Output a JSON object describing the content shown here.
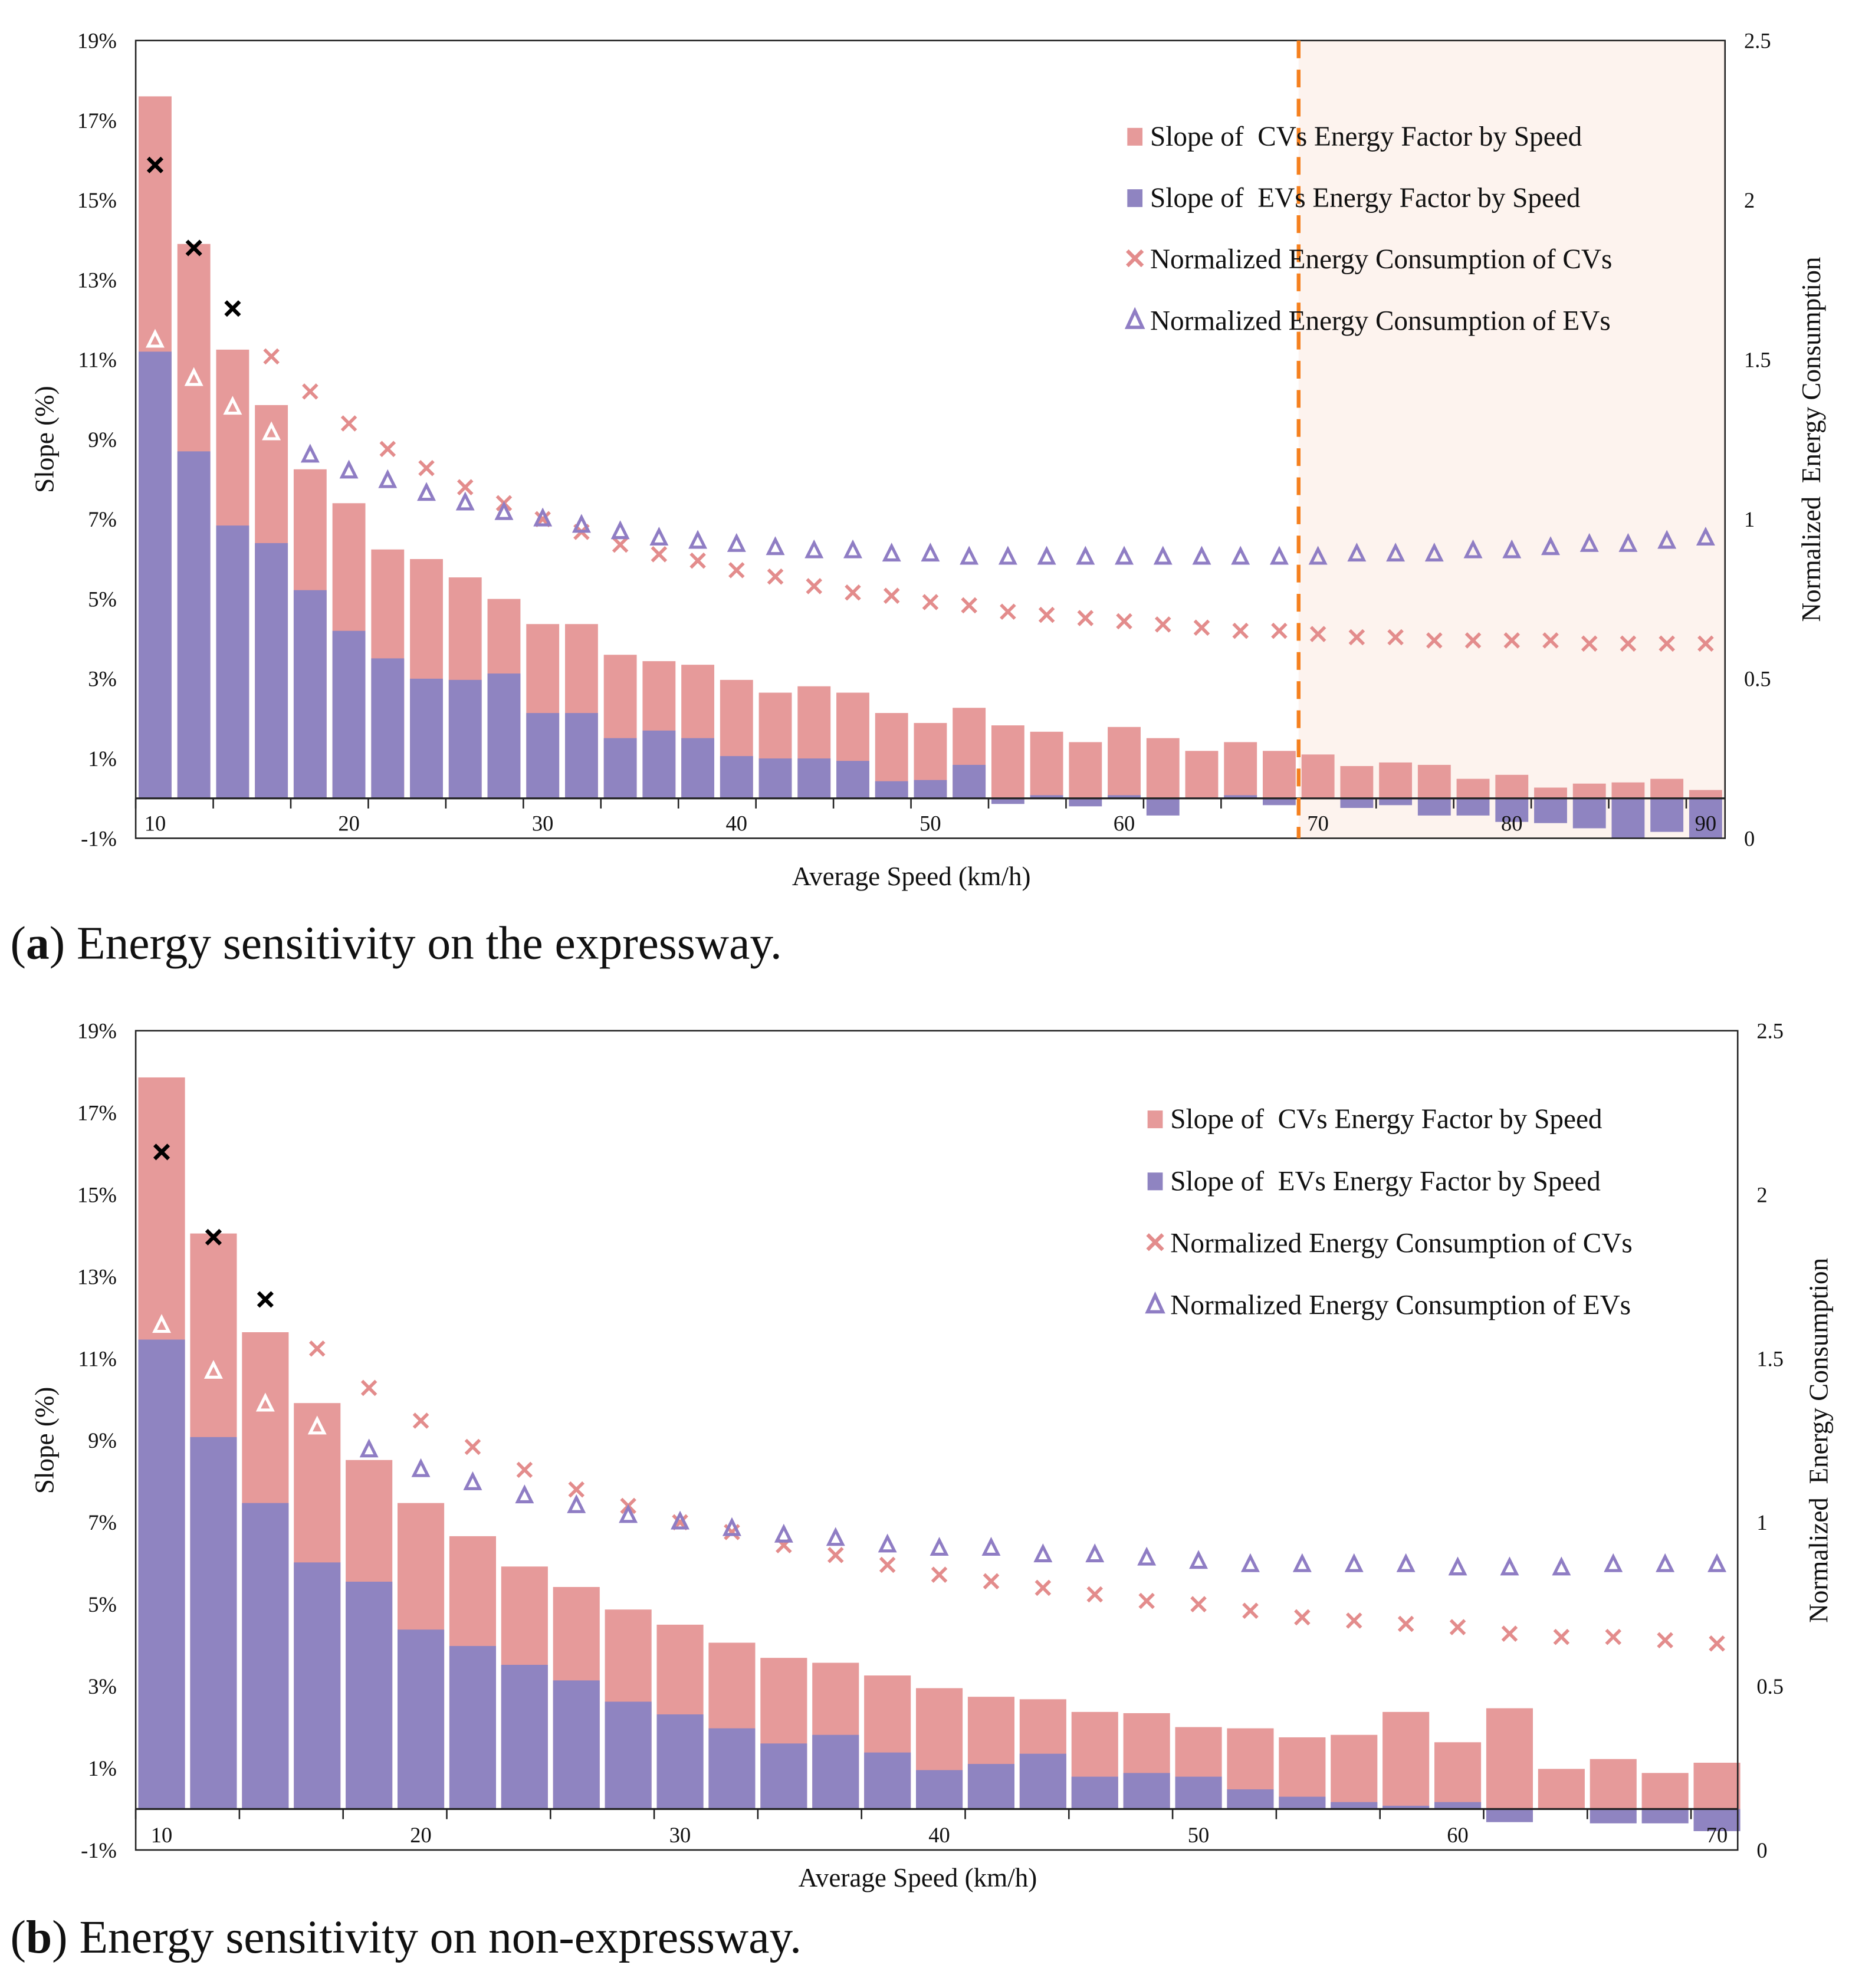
{
  "colors": {
    "cv_bar": "#e69a9a",
    "ev_bar": "#8f84c1",
    "cv_marker": "#e38c8c",
    "ev_marker": "#8f7dc4",
    "highlight_marker": "#000000",
    "threshold_line": "#f5801e",
    "shade": "#fdf3ee"
  },
  "chart_data": [
    {
      "type": "bar",
      "caption_label": "a",
      "caption_text": " Energy sensitivity on the expressway.",
      "xlabel": "Average Speed (km/h)",
      "ylabel": "Slope (%)",
      "y2label": "Normalized  Energy Consumption",
      "xlim": [
        9,
        91
      ],
      "ylim": [
        -1,
        19
      ],
      "y2lim": [
        0,
        2.5
      ],
      "xticks": [
        "10",
        "20",
        "30",
        "40",
        "50",
        "60",
        "70",
        "80",
        "90"
      ],
      "yticks": [
        "-1%",
        "1%",
        "3%",
        "5%",
        "7%",
        "9%",
        "11%",
        "13%",
        "15%",
        "17%",
        "19%"
      ],
      "y2ticks": [
        "0",
        "0.5",
        "1",
        "1.5",
        "2",
        "2.5"
      ],
      "threshold_speed": 69,
      "shaded_range": [
        69,
        91
      ],
      "legend": [
        "Slope of  CVs Energy Factor by Speed",
        "Slope of  EVs Energy Factor by Speed",
        "Normalized Energy Consumption of CVs",
        "Normalized Energy Consumption of EVs"
      ],
      "x": [
        10,
        12,
        14,
        16,
        18,
        20,
        22,
        24,
        26,
        28,
        30,
        32,
        34,
        36,
        38,
        40,
        42,
        44,
        46,
        48,
        50,
        52,
        54,
        56,
        58,
        60,
        62,
        64,
        66,
        68,
        70,
        72,
        74,
        76,
        78,
        80,
        82,
        84,
        86,
        88,
        90
      ],
      "series": [
        {
          "name": "Slope of  CVs Energy Factor by Speed",
          "axis": "left",
          "values": [
            17.6,
            13.9,
            11.25,
            9.86,
            8.25,
            7.4,
            6.24,
            6.0,
            5.54,
            5.0,
            4.37,
            4.37,
            3.6,
            3.44,
            3.35,
            2.97,
            2.65,
            2.81,
            2.65,
            2.14,
            1.89,
            2.27,
            1.83,
            1.67,
            1.41,
            1.79,
            1.51,
            1.19,
            1.41,
            1.19,
            1.1,
            0.81,
            0.9,
            0.84,
            0.49,
            0.59,
            0.27,
            0.37,
            0.4,
            0.49,
            0.21
          ]
        },
        {
          "name": "Slope of  EVs Energy Factor by Speed",
          "axis": "left",
          "values": [
            11.2,
            8.7,
            6.84,
            6.4,
            5.22,
            4.2,
            3.51,
            3.0,
            2.97,
            3.13,
            2.14,
            2.14,
            1.51,
            1.7,
            1.51,
            1.06,
            1.0,
            1.0,
            0.94,
            0.43,
            0.46,
            0.84,
            -0.14,
            0.08,
            -0.2,
            0.08,
            -0.43,
            0.02,
            0.08,
            -0.17,
            0.0,
            -0.24,
            -0.17,
            -0.43,
            -0.43,
            -0.59,
            -0.62,
            -0.75,
            -1.0,
            -0.84,
            -1.0
          ]
        },
        {
          "name": "Normalized Energy Consumption of CVs",
          "axis": "right",
          "values": [
            2.11,
            1.85,
            1.66,
            1.51,
            1.4,
            1.3,
            1.22,
            1.16,
            1.1,
            1.05,
            1.0,
            0.96,
            0.92,
            0.89,
            0.87,
            0.84,
            0.82,
            0.79,
            0.77,
            0.76,
            0.74,
            0.73,
            0.71,
            0.7,
            0.69,
            0.68,
            0.67,
            0.66,
            0.65,
            0.65,
            0.64,
            0.63,
            0.63,
            0.62,
            0.62,
            0.62,
            0.62,
            0.61,
            0.61,
            0.61,
            0.61
          ]
        },
        {
          "name": "Normalized Energy Consumption of EVs",
          "axis": "right",
          "values": [
            1.56,
            1.44,
            1.35,
            1.27,
            1.2,
            1.15,
            1.12,
            1.08,
            1.05,
            1.02,
            1.0,
            0.98,
            0.96,
            0.94,
            0.93,
            0.92,
            0.91,
            0.9,
            0.9,
            0.89,
            0.89,
            0.88,
            0.88,
            0.88,
            0.88,
            0.88,
            0.88,
            0.88,
            0.88,
            0.88,
            0.88,
            0.89,
            0.89,
            0.89,
            0.9,
            0.9,
            0.91,
            0.92,
            0.92,
            0.93,
            0.94
          ]
        }
      ]
    },
    {
      "type": "bar",
      "caption_label": "b",
      "caption_text": " Energy sensitivity on non-expressway.",
      "xlabel": "Average Speed (km/h)",
      "ylabel": "Slope (%)",
      "y2label": "Normalized  Energy Consumption",
      "xlim": [
        9,
        70.8
      ],
      "ylim": [
        -1,
        19
      ],
      "y2lim": [
        0,
        2.5
      ],
      "xticks": [
        "10",
        "20",
        "30",
        "40",
        "50",
        "60",
        "70"
      ],
      "yticks": [
        "-1%",
        "1%",
        "3%",
        "5%",
        "7%",
        "9%",
        "11%",
        "13%",
        "15%",
        "17%",
        "19%"
      ],
      "y2ticks": [
        "0",
        "0.5",
        "1",
        "1.5",
        "2",
        "2.5"
      ],
      "legend": [
        "Slope of  CVs Energy Factor by Speed",
        "Slope of  EVs Energy Factor by Speed",
        "Normalized Energy Consumption of CVs",
        "Normalized Energy Consumption of EVs"
      ],
      "x": [
        10,
        12,
        14,
        16,
        18,
        20,
        22,
        24,
        26,
        28,
        30,
        32,
        34,
        36,
        38,
        40,
        42,
        44,
        46,
        48,
        50,
        52,
        54,
        56,
        58,
        60,
        62,
        64,
        66,
        68,
        70
      ],
      "series": [
        {
          "name": "Slope of  CVs Energy Factor by Speed",
          "axis": "left",
          "values": [
            17.86,
            14.05,
            11.64,
            9.91,
            8.52,
            7.47,
            6.66,
            5.92,
            5.42,
            4.87,
            4.5,
            4.06,
            3.69,
            3.57,
            3.26,
            2.95,
            2.74,
            2.68,
            2.37,
            2.34,
            2.0,
            1.97,
            1.75,
            1.81,
            2.37,
            1.63,
            2.46,
            0.98,
            1.22,
            0.88,
            1.13
          ]
        },
        {
          "name": "Slope of  EVs Energy Factor by Speed",
          "axis": "left",
          "values": [
            11.46,
            9.08,
            7.47,
            6.02,
            5.55,
            4.38,
            3.98,
            3.52,
            3.14,
            2.62,
            2.31,
            1.97,
            1.6,
            1.81,
            1.38,
            0.95,
            1.1,
            1.35,
            0.79,
            0.88,
            0.79,
            0.48,
            0.3,
            0.17,
            0.08,
            0.17,
            -0.32,
            0.02,
            -0.35,
            -0.35,
            -0.54
          ]
        },
        {
          "name": "Normalized Energy Consumption of CVs",
          "axis": "right",
          "values": [
            2.13,
            1.87,
            1.68,
            1.53,
            1.41,
            1.31,
            1.23,
            1.16,
            1.1,
            1.05,
            1.0,
            0.97,
            0.93,
            0.9,
            0.87,
            0.84,
            0.82,
            0.8,
            0.78,
            0.76,
            0.75,
            0.73,
            0.71,
            0.7,
            0.69,
            0.68,
            0.66,
            0.65,
            0.65,
            0.64,
            0.63
          ]
        },
        {
          "name": "Normalized Energy Consumption of EVs",
          "axis": "right",
          "values": [
            1.6,
            1.46,
            1.36,
            1.29,
            1.22,
            1.16,
            1.12,
            1.08,
            1.05,
            1.02,
            1.0,
            0.98,
            0.96,
            0.95,
            0.93,
            0.92,
            0.92,
            0.9,
            0.9,
            0.89,
            0.88,
            0.87,
            0.87,
            0.87,
            0.87,
            0.86,
            0.86,
            0.86,
            0.87,
            0.87,
            0.87
          ]
        }
      ]
    }
  ]
}
